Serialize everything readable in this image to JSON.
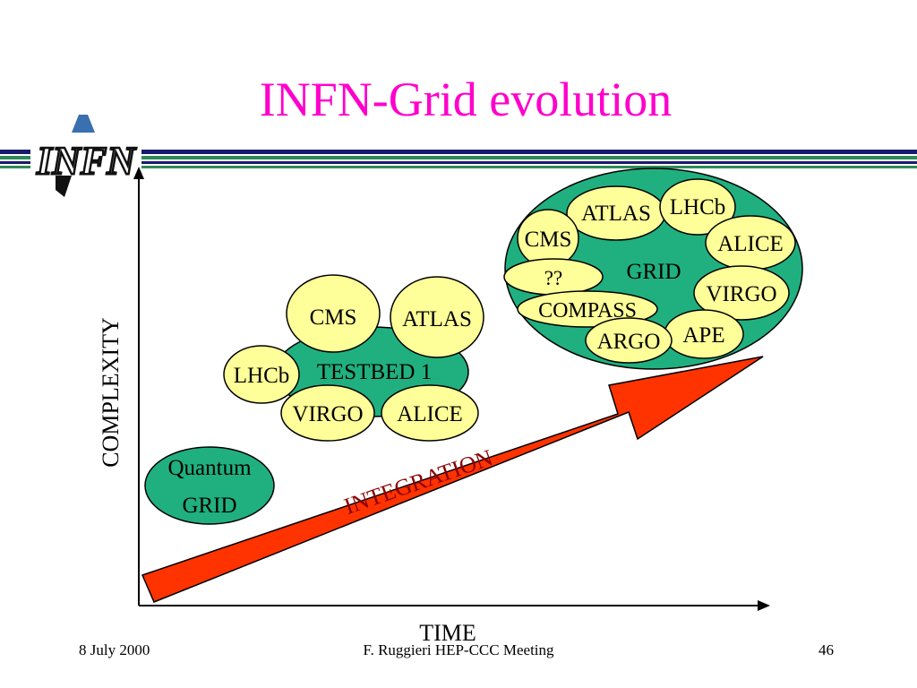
{
  "slide": {
    "title": "INFN-Grid evolution",
    "logo_text": "INFN",
    "footer": {
      "date": "8 July 2000",
      "event": "F. Ruggieri HEP-CCC Meeting",
      "page": "46"
    }
  },
  "diagram": {
    "x_axis_label": "TIME",
    "y_axis_label": "COMPLEXITY",
    "arrow_label": "INTEGRATION",
    "quantum": [
      "Quantum",
      "GRID"
    ],
    "testbed": {
      "label": "TESTBED 1",
      "members": [
        "CMS",
        "ATLAS",
        "LHCb",
        "VIRGO",
        "ALICE"
      ]
    },
    "grid": {
      "label": "GRID",
      "members": [
        "ATLAS",
        "LHCb",
        "CMS",
        "ALICE",
        "??",
        "VIRGO",
        "COMPASS",
        "APE",
        "ARGO"
      ]
    }
  },
  "colors": {
    "title": "#ff00cc",
    "green_cluster": "#20b080",
    "yellow_bubble": "#ffff99",
    "arrow_fill": "#ff3300",
    "stripe_navy": "#1a1a6e",
    "stripe_green": "#2e8b57"
  }
}
